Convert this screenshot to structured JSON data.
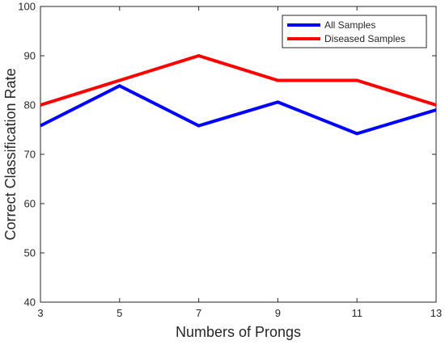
{
  "chart_data": {
    "type": "line",
    "xlabel": "Numbers of Prongs",
    "ylabel": "Correct Classification Rate",
    "x": [
      3,
      5,
      7,
      9,
      11,
      13
    ],
    "xlim": [
      3,
      13
    ],
    "ylim": [
      40,
      100
    ],
    "xticks": [
      "3",
      "5",
      "7",
      "9",
      "11",
      "13"
    ],
    "yticks": [
      "40",
      "50",
      "60",
      "70",
      "80",
      "90",
      "100"
    ],
    "grid": false,
    "legend_position": "top-right",
    "series": [
      {
        "name": "All Samples",
        "color": "#0000ff",
        "values": [
          75.8,
          83.9,
          75.8,
          80.6,
          74.2,
          79.0
        ]
      },
      {
        "name": "Diseased Samples",
        "color": "#ff0000",
        "values": [
          80,
          85,
          90,
          85,
          85,
          80
        ]
      }
    ]
  }
}
